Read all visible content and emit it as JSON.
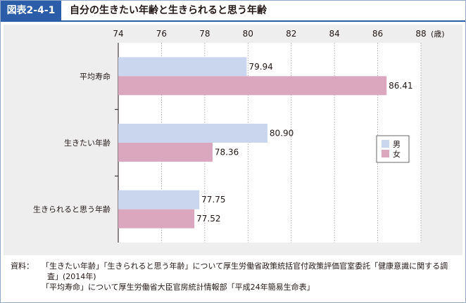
{
  "header": {
    "figure_label": "図表2-4-1",
    "title": "自分の生きたい年齢と生きられると思う年齢"
  },
  "chart_data": {
    "type": "bar",
    "orientation": "horizontal",
    "categories": [
      "平均寿命",
      "生きたい年齢",
      "生きられると思う年齢"
    ],
    "series": [
      {
        "name": "男",
        "values": [
          79.94,
          80.9,
          77.75
        ],
        "color": "#c9d6ee"
      },
      {
        "name": "女",
        "values": [
          86.41,
          78.36,
          77.52
        ],
        "color": "#dba7bf"
      }
    ],
    "value_labels": [
      [
        "79.94",
        "80.90",
        "77.75"
      ],
      [
        "86.41",
        "78.36",
        "77.52"
      ]
    ],
    "xlim": [
      74,
      88
    ],
    "xticks": [
      "74",
      "76",
      "78",
      "80",
      "82",
      "84",
      "86",
      "88"
    ],
    "x_unit": "(歳)",
    "grid": true,
    "legend_position": "right"
  },
  "source": {
    "prefix": "資料：",
    "line1": "「生きたい年齢」「生きられると思う年齢」について厚生労働省政策統括官付政策評価官室委託「健康意識に関する調",
    "line2": "査」(2014年)",
    "line3": "「平均寿命」について厚生労働省大臣官房統計情報部「平成24年簡易生命表」"
  }
}
